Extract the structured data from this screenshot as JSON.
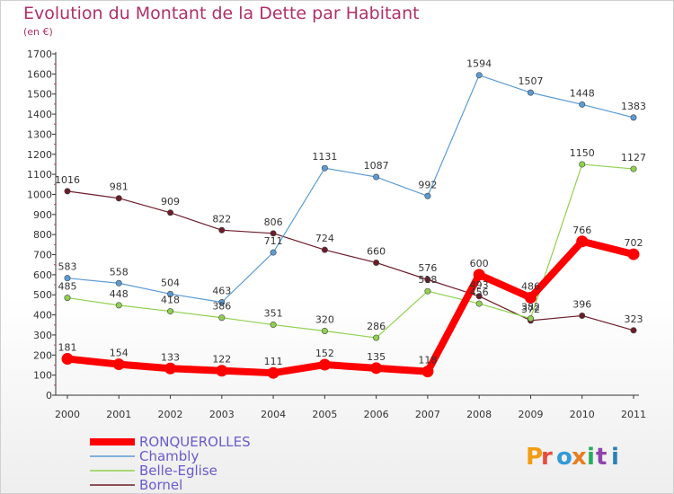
{
  "chart_data": {
    "type": "line",
    "title": "Evolution du Montant de la Dette par Habitant",
    "unit": "(en €)",
    "x": [
      "2000",
      "2001",
      "2002",
      "2003",
      "2004",
      "2005",
      "2006",
      "2007",
      "2008",
      "2009",
      "2010",
      "2011"
    ],
    "ylim": [
      0,
      1700
    ],
    "yticks": [
      0,
      100,
      200,
      300,
      400,
      500,
      600,
      700,
      800,
      900,
      1000,
      1100,
      1200,
      1300,
      1400,
      1500,
      1600,
      1700
    ],
    "grid": false,
    "legend_position": "bottom-left",
    "series": [
      {
        "name": "Bornel",
        "color": "#6b1d2a",
        "width": 1.2,
        "values": [
          1016,
          981,
          909,
          822,
          806,
          724,
          660,
          576,
          493,
          372,
          396,
          323
        ]
      },
      {
        "name": "Belle-Eglise",
        "color": "#8fd14f",
        "width": 1.2,
        "values": [
          485,
          448,
          418,
          386,
          351,
          320,
          286,
          518,
          456,
          382,
          1150,
          1127
        ]
      },
      {
        "name": "Chambly",
        "color": "#5b9bd5",
        "width": 1.2,
        "values": [
          583,
          558,
          504,
          463,
          711,
          1131,
          1087,
          992,
          1594,
          1507,
          1448,
          1383
        ]
      },
      {
        "name": "RONQUEROLLES",
        "color": "#ff0000",
        "width": 8,
        "values": [
          181,
          154,
          133,
          122,
          111,
          152,
          135,
          118,
          600,
          486,
          766,
          702
        ]
      }
    ],
    "legend_order": [
      "RONQUEROLLES",
      "Chambly",
      "Belle-Eglise",
      "Bornel"
    ]
  },
  "brand": "Proxiti"
}
